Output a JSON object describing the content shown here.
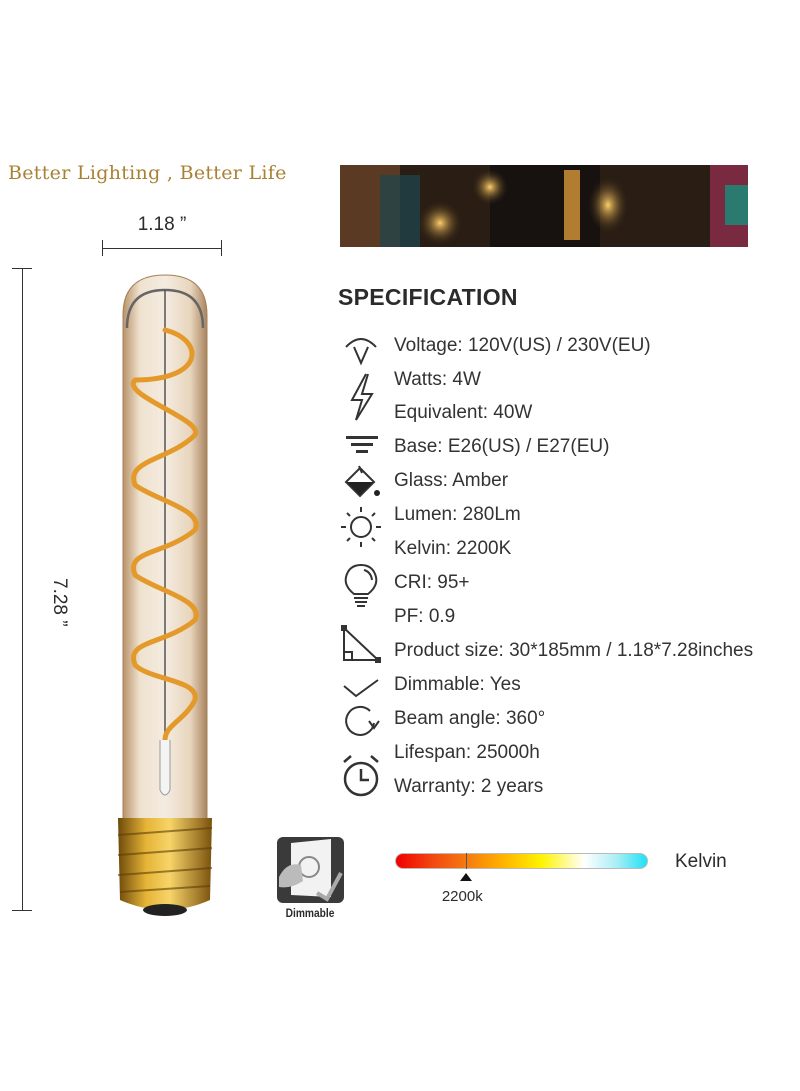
{
  "tagline": "Better Lighting , Better Life",
  "dimensions": {
    "width": "1.18 ”",
    "height": "7.28 ”"
  },
  "spec": {
    "title": "SPECIFICATION",
    "rows": [
      {
        "icon": "voltage-icon",
        "text": "Voltage: 120V(US) / 230V(EU)"
      },
      {
        "icon": "lightning-icon",
        "text": "Watts: 4W"
      },
      {
        "icon": "",
        "text": "Equivalent: 40W"
      },
      {
        "icon": "base-icon",
        "text": "Base: E26(US) / E27(EU)"
      },
      {
        "icon": "paint-bucket-icon",
        "text": "Glass: Amber"
      },
      {
        "icon": "sun-icon",
        "text": "Lumen: 280Lm"
      },
      {
        "icon": "",
        "text": "Kelvin: 2200K"
      },
      {
        "icon": "lightbulb-icon",
        "text": "CRI: 95+"
      },
      {
        "icon": "",
        "text": "PF: 0.9"
      },
      {
        "icon": "triangle-ruler-icon",
        "text": "Product size: 30*185mm / 1.18*7.28inches"
      },
      {
        "icon": "checkmark-icon",
        "text": "Dimmable: Yes"
      },
      {
        "icon": "rotate-icon",
        "text": "Beam angle: 360°"
      },
      {
        "icon": "alarm-clock-icon",
        "text": "Lifespan: 25000h"
      },
      {
        "icon": "",
        "text": "Warranty: 2 years"
      }
    ]
  },
  "kelvin": {
    "label": "Kelvin",
    "value": "2200k",
    "position_percent": 28
  },
  "dimmable_badge": "Dimmable"
}
